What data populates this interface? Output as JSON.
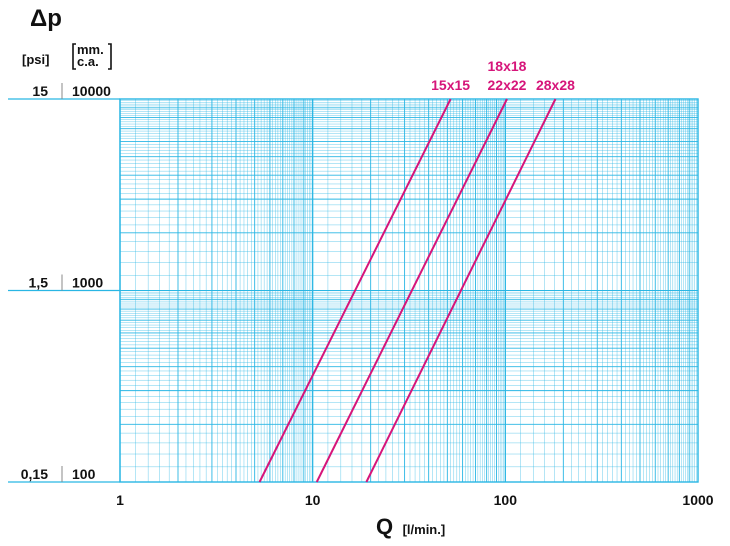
{
  "chart_data": {
    "type": "line",
    "x_scale": "log",
    "y_scale": "log",
    "xlim": [
      1,
      1000
    ],
    "ylim": [
      100,
      10000
    ],
    "grid": true,
    "y_axis_symbol": "Δp",
    "y_units": [
      "[psi]",
      "mm.",
      "c.a."
    ],
    "x_symbol": "Q",
    "x_unit": "[l/min.]",
    "x_ticks": [
      "1",
      "10",
      "100",
      "1000"
    ],
    "y_ticks": [
      {
        "psi": "15",
        "mm": "10000",
        "value": 10000
      },
      {
        "psi": "1,5",
        "mm": "1000",
        "value": 1000
      },
      {
        "psi": "0,15",
        "mm": "100",
        "value": 100
      }
    ],
    "series": [
      {
        "name": "15x15",
        "x": [
          5.3,
          52
        ],
        "y": [
          100,
          10000
        ]
      },
      {
        "name": "18x18 / 22x22",
        "x": [
          10.5,
          102
        ],
        "y": [
          100,
          10000
        ]
      },
      {
        "name": "28x28",
        "x": [
          19,
          182
        ],
        "y": [
          100,
          10000
        ]
      }
    ],
    "series_labels": [
      {
        "lines": [
          "15x15"
        ]
      },
      {
        "lines": [
          "18x18",
          "22x22"
        ]
      },
      {
        "lines": [
          "28x28"
        ]
      }
    ],
    "colors": {
      "grid": "#29b6e4",
      "series": "#d6157a",
      "text": "#111111"
    }
  }
}
